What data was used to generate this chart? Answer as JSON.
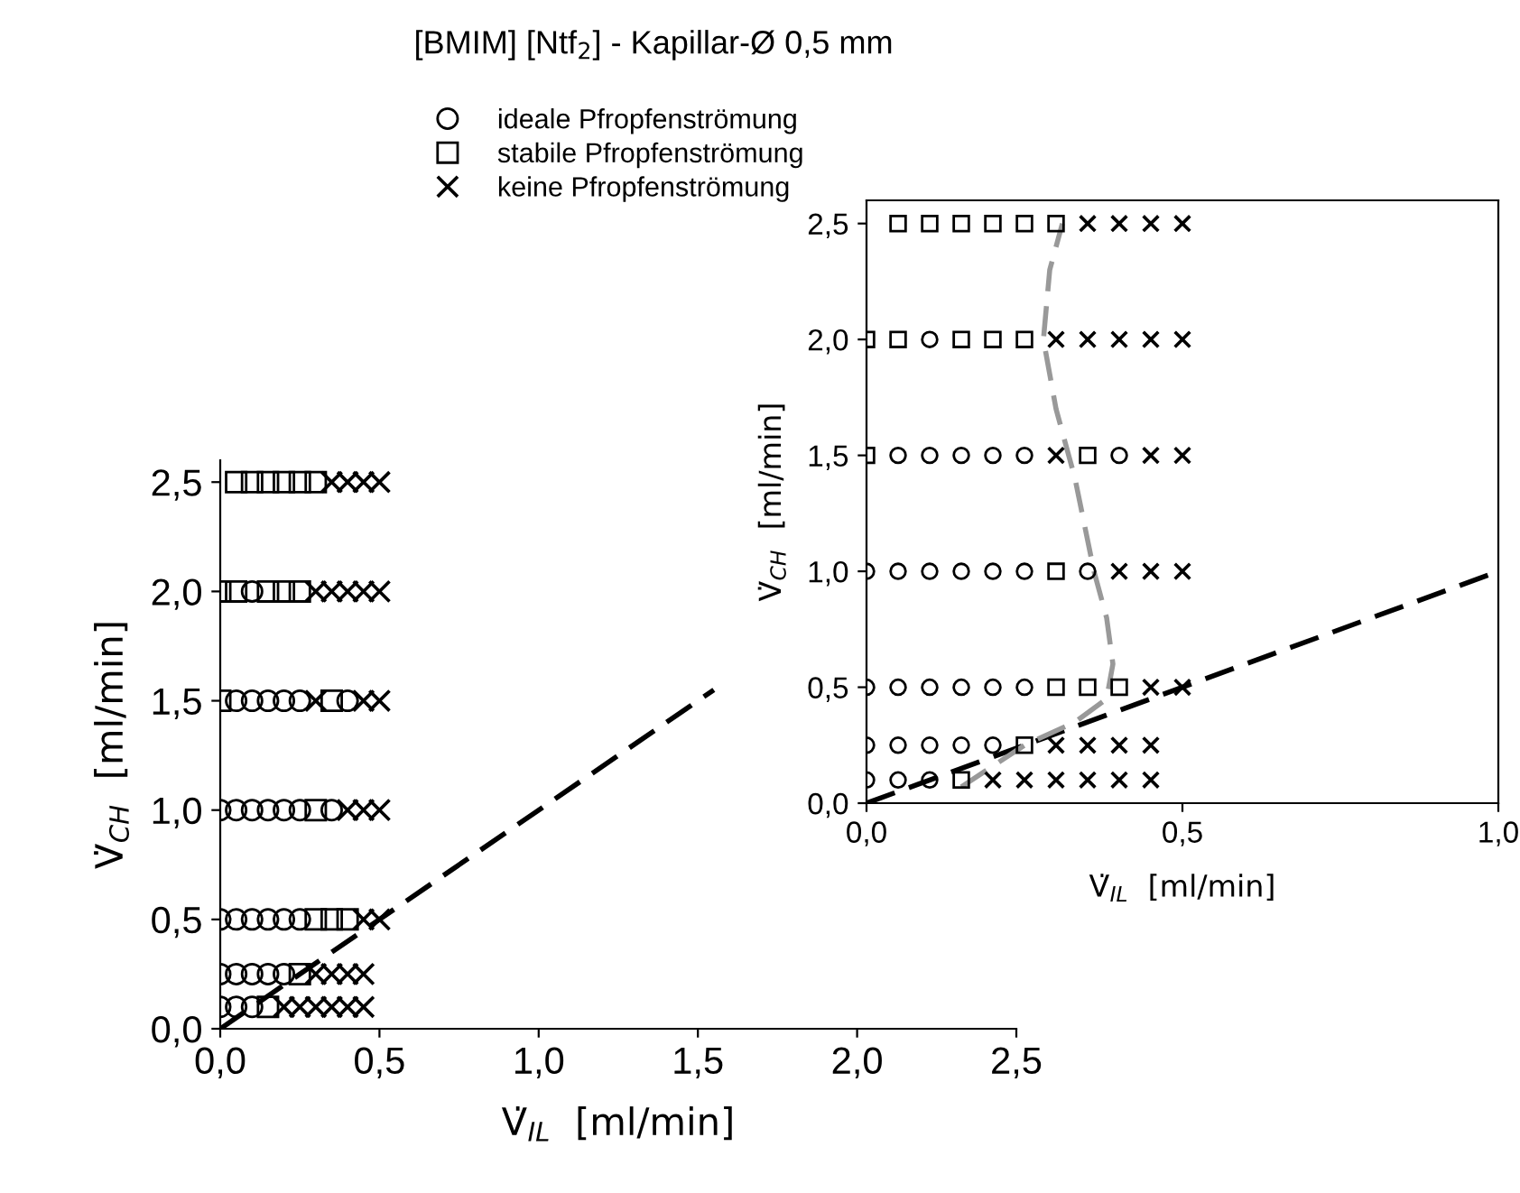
{
  "chart_data": [
    {
      "type": "scatter",
      "title": "[BMIM] [Ntf$_{2}$] - Kapillar-Ø 0,5 mm",
      "xlabel": "V̇$_{IL}$  [ml/min]",
      "ylabel": "V̇$_{CH}$  [ml/min]",
      "xlim": [
        0,
        2.5
      ],
      "ylim": [
        0,
        2.6
      ],
      "xticks": [
        {
          "value": 0,
          "label": "0,0"
        },
        {
          "value": 0.5,
          "label": "0,5"
        },
        {
          "value": 1,
          "label": "1,0"
        },
        {
          "value": 1.5,
          "label": "1,5"
        },
        {
          "value": 2,
          "label": "2,0"
        },
        {
          "value": 2.5,
          "label": "2,5"
        }
      ],
      "yticks": [
        {
          "value": 0,
          "label": "0,0"
        },
        {
          "value": 0.5,
          "label": "0,5"
        },
        {
          "value": 1,
          "label": "1,0"
        },
        {
          "value": 1.5,
          "label": "1,5"
        },
        {
          "value": 2,
          "label": "2,0"
        },
        {
          "value": 2.5,
          "label": "2,5"
        }
      ],
      "legend": "top left",
      "grid": false,
      "series": [
        {
          "name": "ideale Pfropfenströmung",
          "color": "#000000",
          "marker": "circle",
          "x": [
            0.1,
            0.05,
            0.1,
            0.15,
            0.2,
            0.25,
            0.4,
            0,
            0.05,
            0.1,
            0.15,
            0.2,
            0.25,
            0.35,
            0,
            0.05,
            0.1,
            0.15,
            0.2,
            0.25,
            0,
            0.05,
            0.1,
            0.15,
            0.2,
            0,
            0.05,
            0.1
          ],
          "values": [
            2,
            1.5,
            1.5,
            1.5,
            1.5,
            1.5,
            1.5,
            1,
            1,
            1,
            1,
            1,
            1,
            1,
            0.5,
            0.5,
            0.5,
            0.5,
            0.5,
            0.5,
            0.25,
            0.25,
            0.25,
            0.25,
            0.25,
            0.1,
            0.1,
            0.1
          ]
        },
        {
          "name": "stabile Pfropfenströmung",
          "color": "#000000",
          "marker": "square",
          "x": [
            0.05,
            0.1,
            0.15,
            0.2,
            0.25,
            0.3,
            0,
            0.05,
            0.15,
            0.2,
            0.25,
            0,
            0.35,
            0.3,
            0.3,
            0.35,
            0.4,
            0.25,
            0.15
          ],
          "values": [
            2.5,
            2.5,
            2.5,
            2.5,
            2.5,
            2.5,
            2,
            2,
            2,
            2,
            2,
            1.5,
            1.5,
            1,
            0.5,
            0.5,
            0.5,
            0.25,
            0.1
          ]
        },
        {
          "name": "keine Pfropfenströmung",
          "color": "#000000",
          "marker": "cross",
          "x": [
            0.35,
            0.4,
            0.45,
            0.5,
            0.3,
            0.35,
            0.4,
            0.45,
            0.5,
            0.3,
            0.45,
            0.5,
            0.4,
            0.45,
            0.5,
            0.45,
            0.5,
            0.3,
            0.35,
            0.4,
            0.45,
            0.2,
            0.25,
            0.3,
            0.35,
            0.4,
            0.45
          ],
          "values": [
            2.5,
            2.5,
            2.5,
            2.5,
            2,
            2,
            2,
            2,
            2,
            1.5,
            1.5,
            1.5,
            1,
            1,
            1,
            0.5,
            0.5,
            0.25,
            0.25,
            0.25,
            0.25,
            0.1,
            0.1,
            0.1,
            0.1,
            0.1,
            0.1
          ]
        },
        {
          "type": "line",
          "color": "#000000",
          "line_style": "dashed",
          "marker": "none",
          "x": [
            0,
            1.55
          ],
          "values": [
            0,
            1.55
          ]
        }
      ]
    },
    {
      "type": "scatter",
      "xlabel": "V̇$_{IL}$  [ml/min]",
      "ylabel": "V̇$_{CH}$  [ml/min]",
      "xlim": [
        0,
        1
      ],
      "ylim": [
        0,
        2.6
      ],
      "xticks": [
        {
          "value": 0,
          "label": "0,0"
        },
        {
          "value": 0.5,
          "label": "0,5"
        },
        {
          "value": 1,
          "label": "1,0"
        }
      ],
      "yticks": [
        {
          "value": 0,
          "label": "0,0"
        },
        {
          "value": 0.5,
          "label": "0,5"
        },
        {
          "value": 1,
          "label": "1,0"
        },
        {
          "value": 1.5,
          "label": "1,5"
        },
        {
          "value": 2,
          "label": "2,0"
        },
        {
          "value": 2.5,
          "label": "2,5"
        }
      ],
      "grid": false,
      "series": [
        {
          "color": "#000000",
          "marker": "circle",
          "x": [
            0.1,
            0.05,
            0.1,
            0.15,
            0.2,
            0.25,
            0.4,
            0,
            0.05,
            0.1,
            0.15,
            0.2,
            0.25,
            0.35,
            0,
            0.05,
            0.1,
            0.15,
            0.2,
            0.25,
            0,
            0.05,
            0.1,
            0.15,
            0.2,
            0,
            0.05,
            0.1
          ],
          "values": [
            2,
            1.5,
            1.5,
            1.5,
            1.5,
            1.5,
            1.5,
            1,
            1,
            1,
            1,
            1,
            1,
            1,
            0.5,
            0.5,
            0.5,
            0.5,
            0.5,
            0.5,
            0.25,
            0.25,
            0.25,
            0.25,
            0.25,
            0.1,
            0.1,
            0.1
          ]
        },
        {
          "color": "#000000",
          "marker": "square",
          "x": [
            0.05,
            0.1,
            0.15,
            0.2,
            0.25,
            0.3,
            0,
            0.05,
            0.15,
            0.2,
            0.25,
            0,
            0.35,
            0.3,
            0.3,
            0.35,
            0.4,
            0.25,
            0.15
          ],
          "values": [
            2.5,
            2.5,
            2.5,
            2.5,
            2.5,
            2.5,
            2,
            2,
            2,
            2,
            2,
            1.5,
            1.5,
            1,
            0.5,
            0.5,
            0.5,
            0.25,
            0.1
          ]
        },
        {
          "color": "#000000",
          "marker": "cross",
          "x": [
            0.35,
            0.4,
            0.45,
            0.5,
            0.3,
            0.35,
            0.4,
            0.45,
            0.5,
            0.3,
            0.45,
            0.5,
            0.4,
            0.45,
            0.5,
            0.45,
            0.5,
            0.3,
            0.35,
            0.4,
            0.45,
            0.2,
            0.25,
            0.3,
            0.35,
            0.4,
            0.45
          ],
          "values": [
            2.5,
            2.5,
            2.5,
            2.5,
            2,
            2,
            2,
            2,
            2,
            1.5,
            1.5,
            1.5,
            1,
            1,
            1,
            0.5,
            0.5,
            0.25,
            0.25,
            0.25,
            0.25,
            0.1,
            0.1,
            0.1,
            0.1,
            0.1,
            0.1
          ]
        },
        {
          "type": "line",
          "color": "#000000",
          "line_style": "dashed",
          "marker": "none",
          "x": [
            0,
            1
          ],
          "values": [
            0,
            1
          ]
        },
        {
          "type": "line",
          "color": "#999999",
          "line_style": "dashed",
          "marker": "none",
          "x": [
            0.15,
            0.25,
            0.33,
            0.38,
            0.39,
            0.38,
            0.36,
            0.33,
            0.3,
            0.28,
            0.29,
            0.31
          ],
          "values": [
            0.07,
            0.25,
            0.35,
            0.45,
            0.6,
            0.8,
            1.0,
            1.4,
            1.7,
            2.0,
            2.3,
            2.5
          ]
        }
      ]
    }
  ]
}
